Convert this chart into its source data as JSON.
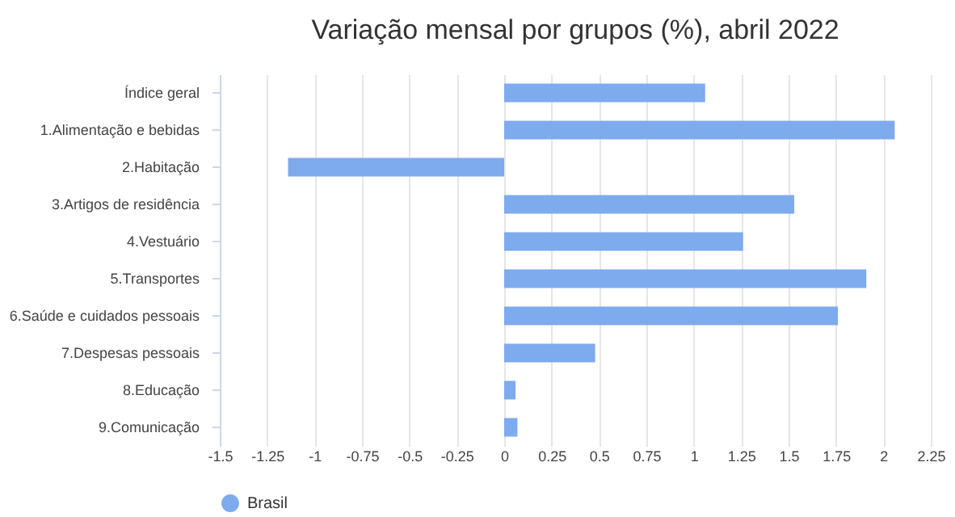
{
  "chart_data": {
    "type": "bar",
    "orientation": "horizontal",
    "title": "Variação mensal por grupos (%), abril 2022",
    "categories": [
      "Índice geral",
      "1.Alimentação e bebidas",
      "2.Habitação",
      "3.Artigos de residência",
      "4.Vestuário",
      "5.Transportes",
      "6.Saúde e cuidados pessoais",
      "7.Despesas pessoais",
      "8.Educação",
      "9.Comunicação"
    ],
    "series": [
      {
        "name": "Brasil",
        "color": "#7eaaee",
        "values": [
          1.06,
          2.06,
          -1.14,
          1.53,
          1.26,
          1.91,
          1.76,
          0.48,
          0.06,
          0.07
        ]
      }
    ],
    "xlim": [
      -1.5,
      2.25
    ],
    "xticks": [
      -1.5,
      -1.25,
      -1,
      -0.75,
      -0.5,
      -0.25,
      0,
      0.25,
      0.5,
      0.75,
      1,
      1.25,
      1.5,
      1.75,
      2,
      2.25
    ],
    "grid": "x",
    "legend": "bottom"
  }
}
